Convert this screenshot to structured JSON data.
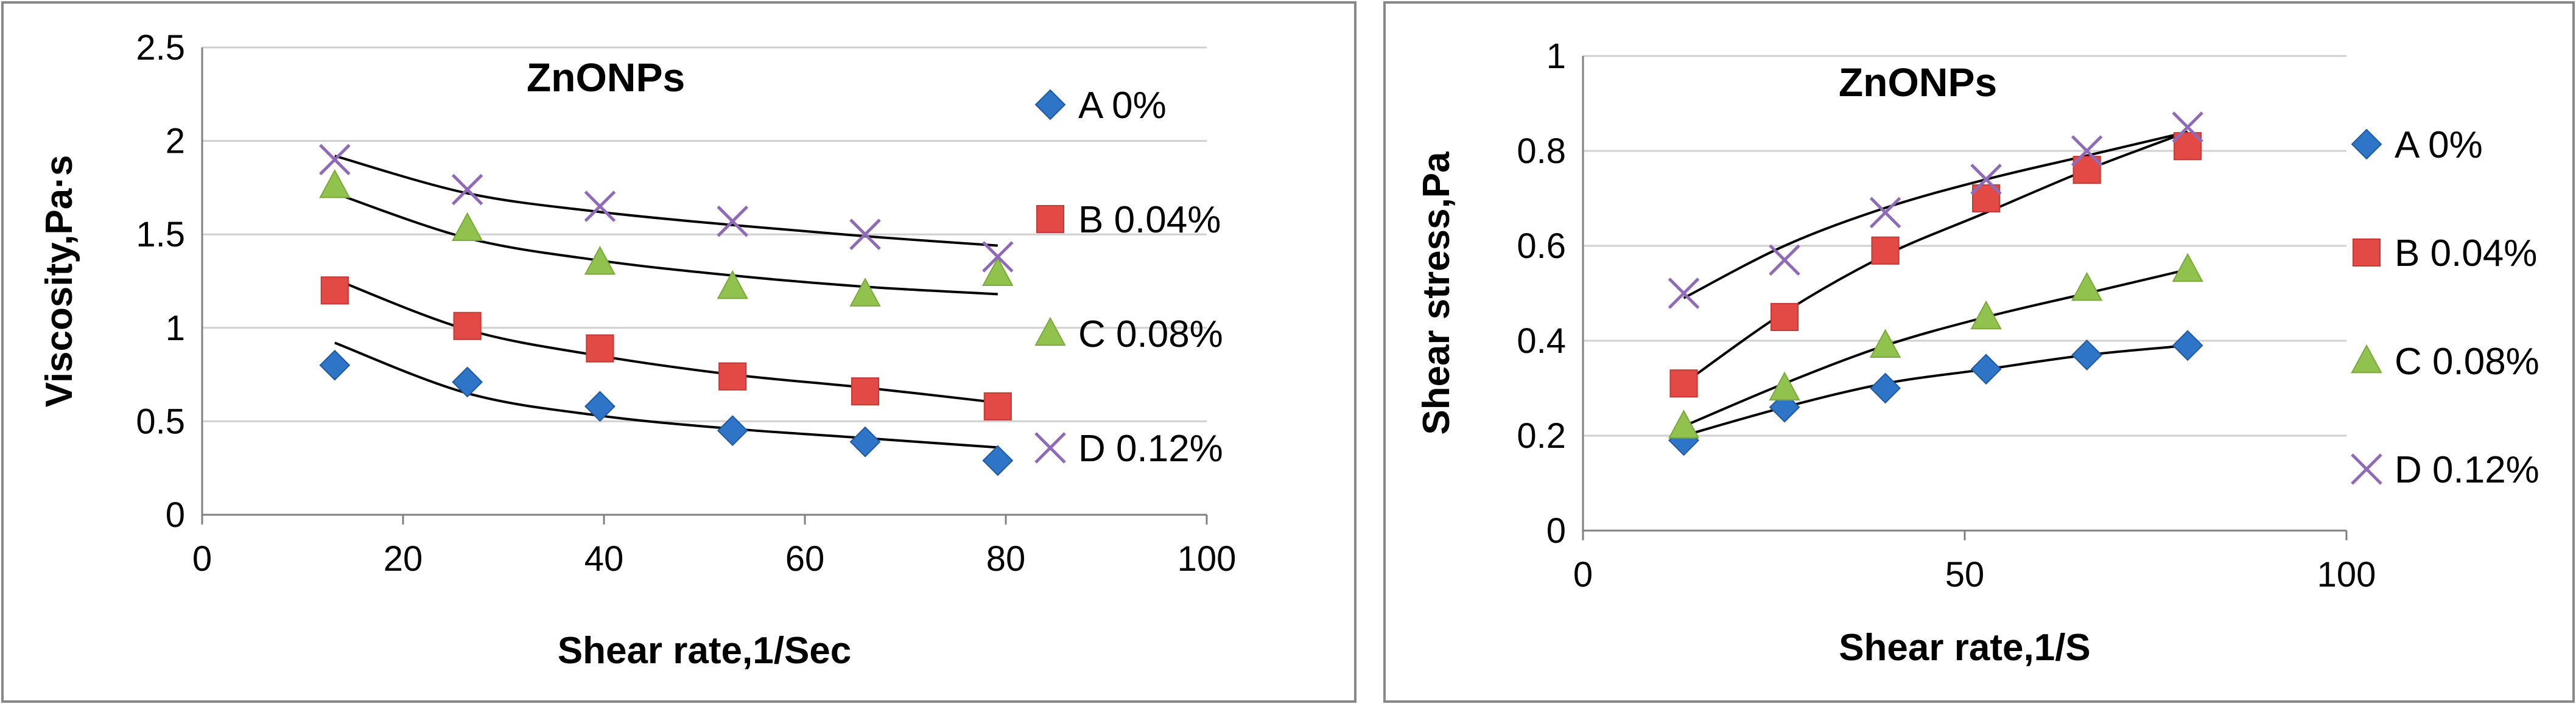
{
  "chart_data": [
    {
      "type": "scatter",
      "title": "ZnONPs",
      "xlabel": "Shear rate,1/Sec",
      "ylabel": "Viscosity,Pa·s",
      "xlim": [
        0,
        100
      ],
      "ylim": [
        0,
        2.5
      ],
      "xticks": [
        0,
        20,
        40,
        60,
        80,
        100
      ],
      "yticks": [
        0,
        0.5,
        1,
        1.5,
        2,
        2.5
      ],
      "ytick_labels": [
        "0",
        "0.5",
        "1",
        "1.5",
        "2",
        "2.5"
      ],
      "legend_position": "right",
      "x": [
        13.2,
        26.4,
        39.6,
        52.8,
        66,
        79.2
      ],
      "series": [
        {
          "name": "A 0%",
          "marker": "diamond",
          "color": "#2E75C8",
          "values": [
            0.8,
            0.71,
            0.58,
            0.45,
            0.39,
            0.29
          ],
          "trend": [
            0.92,
            0.65,
            0.53,
            0.46,
            0.41,
            0.36
          ]
        },
        {
          "name": "B 0.04%",
          "marker": "square",
          "color": "#E34A45",
          "values": [
            1.2,
            1.01,
            0.89,
            0.74,
            0.66,
            0.58
          ],
          "trend": [
            1.26,
            0.99,
            0.85,
            0.75,
            0.68,
            0.6
          ]
        },
        {
          "name": "C 0.08%",
          "marker": "triangle",
          "color": "#92C24E",
          "values": [
            1.76,
            1.53,
            1.35,
            1.22,
            1.18,
            1.29
          ],
          "trend": [
            1.72,
            1.48,
            1.36,
            1.28,
            1.22,
            1.18
          ]
        },
        {
          "name": "D 0.12%",
          "marker": "x",
          "color": "#8E6AB7",
          "values": [
            1.9,
            1.74,
            1.65,
            1.57,
            1.5,
            1.38
          ],
          "trend": [
            1.92,
            1.72,
            1.62,
            1.55,
            1.49,
            1.44
          ]
        }
      ]
    },
    {
      "type": "scatter",
      "title": "ZnONPs",
      "xlabel": "Shear rate,1/S",
      "ylabel": "Shear stress,Pa",
      "xlim": [
        0,
        100
      ],
      "ylim": [
        0,
        1
      ],
      "xticks": [
        0,
        50,
        100
      ],
      "yticks": [
        0,
        0.2,
        0.4,
        0.6,
        0.8,
        1
      ],
      "ytick_labels": [
        "0",
        "0.2",
        "0.4",
        "0.6",
        "0.8",
        "1"
      ],
      "legend_position": "right",
      "x": [
        13.2,
        26.4,
        39.6,
        52.8,
        66,
        79.2
      ],
      "series": [
        {
          "name": "A 0%",
          "marker": "diamond",
          "color": "#2E75C8",
          "values": [
            0.19,
            0.26,
            0.3,
            0.34,
            0.37,
            0.39
          ],
          "trend": [
            0.2,
            0.26,
            0.31,
            0.34,
            0.37,
            0.39
          ]
        },
        {
          "name": "B 0.04%",
          "marker": "square",
          "color": "#E34A45",
          "values": [
            0.31,
            0.45,
            0.59,
            0.7,
            0.76,
            0.81
          ],
          "trend": [
            0.31,
            0.46,
            0.58,
            0.67,
            0.76,
            0.84
          ]
        },
        {
          "name": "C 0.08%",
          "marker": "triangle",
          "color": "#92C24E",
          "values": [
            0.22,
            0.3,
            0.39,
            0.45,
            0.51,
            0.55
          ],
          "trend": [
            0.22,
            0.31,
            0.39,
            0.45,
            0.5,
            0.55
          ]
        },
        {
          "name": "D 0.12%",
          "marker": "x",
          "color": "#8E6AB7",
          "values": [
            0.5,
            0.57,
            0.67,
            0.74,
            0.8,
            0.85
          ],
          "trend": [
            0.49,
            0.6,
            0.68,
            0.74,
            0.79,
            0.84
          ]
        }
      ]
    }
  ]
}
